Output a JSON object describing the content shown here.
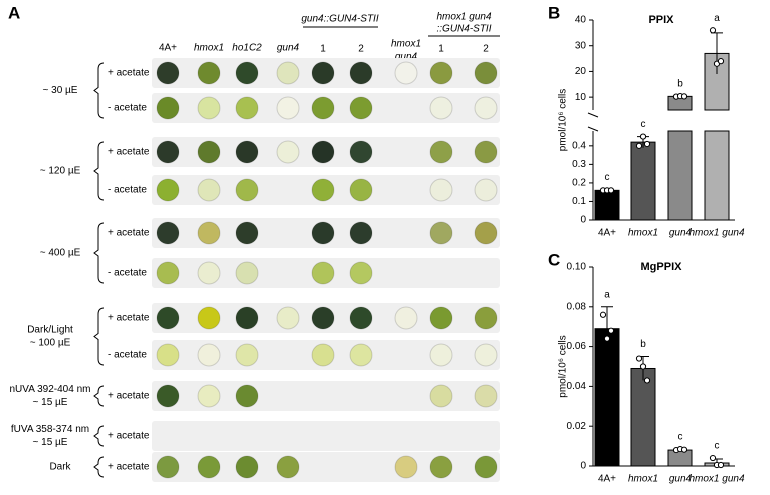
{
  "panel_a": {
    "panel_label": "A",
    "columns": [
      "4A+",
      "hmox1",
      "ho1C2",
      "gun4",
      "1",
      "2",
      "1",
      "2"
    ],
    "column_group_1": "gun4::GUN4-STII",
    "column_hmox1_gun4": [
      "hmox1",
      "gun4"
    ],
    "column_group_2": [
      "hmox1 gun4",
      "::GUN4-STII"
    ],
    "rows": [
      "+ acetate",
      "- acetate",
      "+ acetate",
      "- acetate",
      "+ acetate",
      "- acetate",
      "+ acetate",
      "- acetate",
      "+ acetate",
      "+ acetate",
      "+ acetate"
    ],
    "groups": [
      {
        "label": [
          "~ 30 µE"
        ]
      },
      {
        "label": [
          "~ 120 µE"
        ]
      },
      {
        "label": [
          "~ 400 µE"
        ]
      },
      {
        "label": [
          "Dark/Light",
          "~ 100 µE"
        ]
      },
      {
        "label": [
          "nUVA 392-404 nm",
          "~ 15 µE"
        ]
      },
      {
        "label": [
          "fUVA 358-374 nm",
          "~ 15 µE"
        ]
      },
      {
        "label": [
          "Dark"
        ]
      }
    ]
  },
  "chart_data": [
    {
      "type": "broken-bar",
      "panel_label": "B",
      "title": "PPIX",
      "y_label": "pmol/10⁶ cells",
      "categories": [
        "4A+",
        "hmox1",
        "gun4",
        "hmox1 gun4"
      ],
      "values": [
        0.16,
        0.42,
        10.3,
        27
      ],
      "errors": [
        0.005,
        0.03,
        0.2,
        8
      ],
      "points": [
        [
          0.16,
          0.16,
          0.16
        ],
        [
          0.4,
          0.45,
          0.41
        ],
        [
          10.2,
          10.4,
          10.3
        ],
        [
          36,
          23,
          24
        ]
      ],
      "letters": [
        "c",
        "c",
        "b",
        "a"
      ],
      "colors": [
        "#000000",
        "#555555",
        "#8a8a8a",
        "#b0b0b0"
      ],
      "ylim_lower": [
        0,
        0.48
      ],
      "yticks_lower": [
        0,
        0.1,
        0.2,
        0.3,
        0.4
      ],
      "ylim_upper": [
        5,
        40
      ],
      "yticks_upper": [
        10,
        20,
        30,
        40
      ]
    },
    {
      "type": "bar",
      "panel_label": "C",
      "title": "MgPPIX",
      "y_label": "pmol/10⁶ cells",
      "categories": [
        "4A+",
        "hmox1",
        "gun4",
        "hmox1 gun4"
      ],
      "values": [
        0.069,
        0.049,
        0.008,
        0.0015
      ],
      "errors": [
        0.011,
        0.006,
        0.0005,
        0.002
      ],
      "points": [
        [
          0.076,
          0.064,
          0.068
        ],
        [
          0.054,
          0.05,
          0.043
        ],
        [
          0.008,
          0.0085,
          0.0082
        ],
        [
          0.004,
          0.0005,
          0.0005
        ]
      ],
      "letters": [
        "a",
        "b",
        "c",
        "c"
      ],
      "colors": [
        "#000000",
        "#555555",
        "#8a8a8a",
        "#b0b0b0"
      ],
      "ylim": [
        0,
        0.1
      ],
      "yticks": [
        0,
        0.02,
        0.04,
        0.06,
        0.08,
        {
          "value": 0.1,
          "label": "0.10"
        }
      ]
    }
  ]
}
